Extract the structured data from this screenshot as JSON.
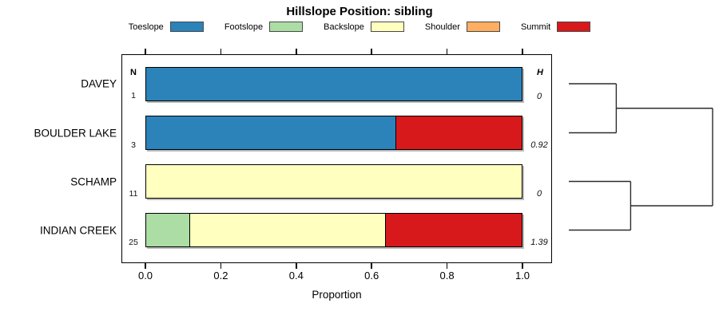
{
  "chart_data": {
    "type": "bar",
    "variant": "horizontal-stacked-proportion",
    "title": "Hillslope Position: sibling",
    "categories": [
      "DAVEY",
      "BOULDER LAKE",
      "SCHAMP",
      "INDIAN CREEK"
    ],
    "series": [
      {
        "name": "Toeslope",
        "color": "#2B83BA",
        "values": [
          1.0,
          0.667,
          0,
          0
        ]
      },
      {
        "name": "Footslope",
        "color": "#ABDDA4",
        "values": [
          0,
          0,
          0,
          0.12
        ]
      },
      {
        "name": "Backslope",
        "color": "#FFFFBF",
        "values": [
          0,
          0,
          1.0,
          0.52
        ]
      },
      {
        "name": "Shoulder",
        "color": "#FDAE61",
        "values": [
          0,
          0,
          0,
          0
        ]
      },
      {
        "name": "Summit",
        "color": "#D7191C",
        "values": [
          0,
          0.333,
          0,
          0.36
        ]
      }
    ],
    "xlabel": "Proportion",
    "xlim": [
      0,
      1
    ],
    "xticks": [
      0.0,
      0.2,
      0.4,
      0.6,
      0.8,
      1.0
    ],
    "tick_labels": [
      "0.0",
      "0.2",
      "0.4",
      "0.6",
      "0.8",
      "1.0"
    ],
    "legend_position": "top",
    "grid": false,
    "n_column": {
      "header": "N",
      "values": [
        "1",
        "3",
        "11",
        "25"
      ]
    },
    "h_column": {
      "header": "H",
      "values": [
        "0",
        "0.92",
        "0",
        "1.39"
      ]
    },
    "dendrogram": {
      "axis": "right",
      "merges": [
        {
          "members": [
            0,
            1
          ],
          "height": 0.33
        },
        {
          "members": [
            2,
            3
          ],
          "height": 0.43
        },
        {
          "members": [
            "m0",
            "m1"
          ],
          "height": 1.0
        }
      ]
    }
  }
}
